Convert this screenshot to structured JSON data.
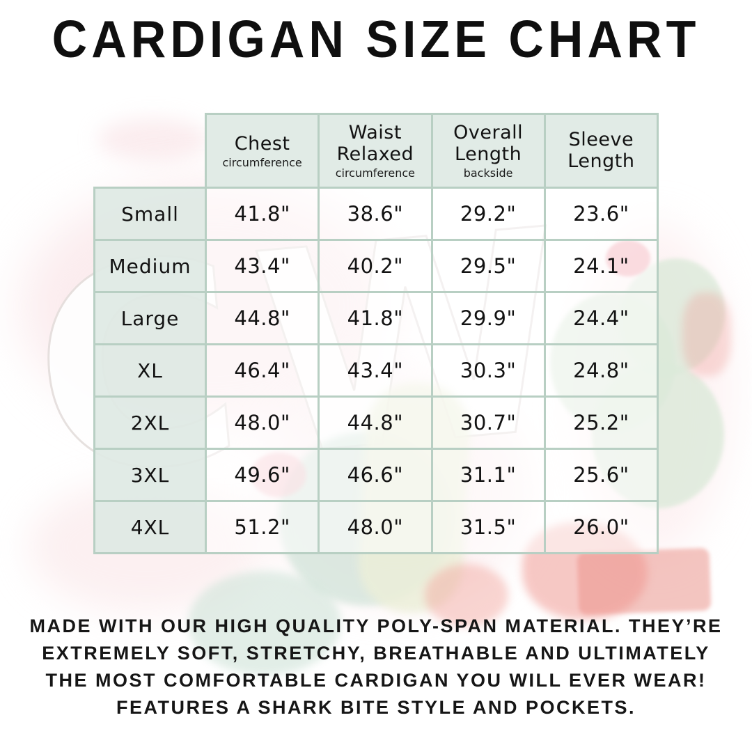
{
  "title": "CARDIGAN SIZE CHART",
  "watermark": {
    "letters": "CW"
  },
  "chart_data": {
    "type": "table",
    "title": "CARDIGAN SIZE CHART",
    "columns": [
      {
        "label": "Chest",
        "sublabel": "circumference"
      },
      {
        "label": "Waist Relaxed",
        "sublabel": "circumference"
      },
      {
        "label": "Overall Length",
        "sublabel": "backside"
      },
      {
        "label": "Sleeve Length",
        "sublabel": ""
      }
    ],
    "rows": [
      {
        "size": "Small",
        "chest": "41.8\"",
        "waist": "38.6\"",
        "length": "29.2\"",
        "sleeve": "23.6\""
      },
      {
        "size": "Medium",
        "chest": "43.4\"",
        "waist": "40.2\"",
        "length": "29.5\"",
        "sleeve": "24.1\""
      },
      {
        "size": "Large",
        "chest": "44.8\"",
        "waist": "41.8\"",
        "length": "29.9\"",
        "sleeve": "24.4\""
      },
      {
        "size": "XL",
        "chest": "46.4\"",
        "waist": "43.4\"",
        "length": "30.3\"",
        "sleeve": "24.8\""
      },
      {
        "size": "2XL",
        "chest": "48.0\"",
        "waist": "44.8\"",
        "length": "30.7\"",
        "sleeve": "25.2\""
      },
      {
        "size": "3XL",
        "chest": "49.6\"",
        "waist": "46.6\"",
        "length": "31.1\"",
        "sleeve": "25.6\""
      },
      {
        "size": "4XL",
        "chest": "51.2\"",
        "waist": "48.0\"",
        "length": "31.5\"",
        "sleeve": "26.0\""
      }
    ]
  },
  "footer": {
    "lines": [
      "MADE WITH OUR HIGH QUALITY POLY-SPAN MATERIAL. THEY’RE",
      "EXTREMELY SOFT, STRETCHY, BREATHABLE AND ULTIMATELY",
      "THE MOST COMFORTABLE CARDIGAN YOU WILL EVER WEAR!",
      "FEATURES A SHARK BITE STYLE AND POCKETS."
    ]
  },
  "colors": {
    "background": "#ffffff",
    "cell_mint": "#dfeae4",
    "border_sage": "#b8cfc3",
    "text": "#121212",
    "watermark_pink": "#f8d9dd",
    "watermark_green": "#dceada",
    "watermark_teal": "#cfe3d8",
    "watermark_coral": "#ef928b"
  }
}
